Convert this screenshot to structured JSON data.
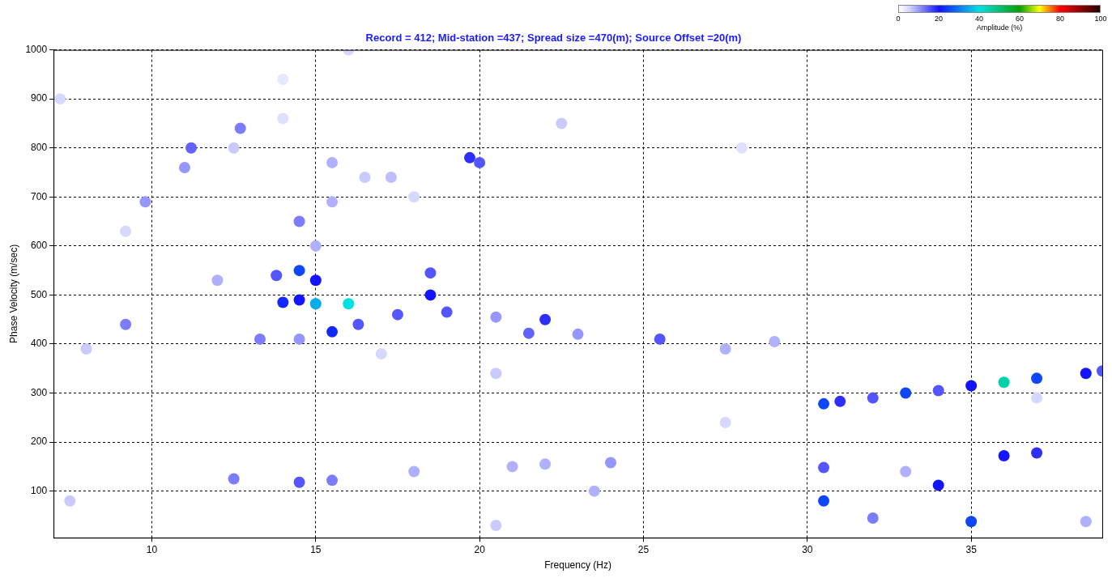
{
  "chart_data": {
    "type": "heatmap",
    "title": "Record = 412; Mid-station =437; Spread size =470(m); Source Offset =20(m)",
    "x_label": "Frequency (Hz)",
    "y_label": "Phase Velocity (m/sec)",
    "xlim": [
      7,
      39
    ],
    "xticks": [
      10,
      15,
      20,
      25,
      30,
      35
    ],
    "ylim": [
      5,
      1000
    ],
    "yticks": [
      100,
      200,
      300,
      400,
      500,
      600,
      700,
      800,
      900,
      1000
    ],
    "grid": true,
    "cells": [
      [
        7.2,
        900,
        5
      ],
      [
        9.8,
        690,
        10
      ],
      [
        9.2,
        630,
        5
      ],
      [
        11.2,
        800,
        14
      ],
      [
        11.0,
        760,
        10
      ],
      [
        12.7,
        840,
        12
      ],
      [
        12.5,
        800,
        6
      ],
      [
        14.0,
        860,
        4
      ],
      [
        14.5,
        650,
        12
      ],
      [
        15.5,
        770,
        8
      ],
      [
        15.5,
        690,
        8
      ],
      [
        16.5,
        740,
        6
      ],
      [
        17.3,
        740,
        7
      ],
      [
        18.0,
        700,
        5
      ],
      [
        19.7,
        780,
        18
      ],
      [
        20.0,
        770,
        15
      ],
      [
        15.0,
        600,
        8
      ],
      [
        14.0,
        940,
        3
      ],
      [
        28.0,
        800,
        4
      ],
      [
        22.5,
        850,
        6
      ],
      [
        16.0,
        1000,
        5
      ],
      [
        13.8,
        540,
        15
      ],
      [
        15.0,
        530,
        20
      ],
      [
        14.5,
        490,
        20
      ],
      [
        14.0,
        485,
        22
      ],
      [
        14.5,
        550,
        25
      ],
      [
        15.5,
        425,
        22
      ],
      [
        16.3,
        440,
        15
      ],
      [
        17.5,
        460,
        15
      ],
      [
        18.5,
        500,
        20
      ],
      [
        18.5,
        545,
        15
      ],
      [
        19.0,
        465,
        15
      ],
      [
        20.5,
        455,
        10
      ],
      [
        22.0,
        450,
        18
      ],
      [
        21.5,
        422,
        14
      ],
      [
        23.0,
        420,
        10
      ],
      [
        25.5,
        410,
        15
      ],
      [
        27.5,
        390,
        8
      ],
      [
        29.0,
        405,
        8
      ],
      [
        13.3,
        410,
        12
      ],
      [
        14.5,
        410,
        10
      ],
      [
        12.0,
        530,
        8
      ],
      [
        9.2,
        440,
        12
      ],
      [
        8.0,
        390,
        6
      ],
      [
        17.0,
        380,
        5
      ],
      [
        20.5,
        340,
        6
      ],
      [
        15.0,
        482,
        35
      ],
      [
        16.0,
        482,
        40
      ],
      [
        30.5,
        278,
        25
      ],
      [
        31.0,
        283,
        18
      ],
      [
        32.0,
        290,
        15
      ],
      [
        33.0,
        300,
        25
      ],
      [
        34.0,
        305,
        15
      ],
      [
        35.0,
        315,
        20
      ],
      [
        37.0,
        330,
        25
      ],
      [
        38.5,
        340,
        20
      ],
      [
        39.0,
        345,
        15
      ],
      [
        36.0,
        322,
        45
      ],
      [
        12.5,
        125,
        12
      ],
      [
        14.5,
        118,
        15
      ],
      [
        15.5,
        122,
        12
      ],
      [
        18.0,
        140,
        8
      ],
      [
        21.0,
        150,
        8
      ],
      [
        24.0,
        158,
        10
      ],
      [
        30.5,
        148,
        15
      ],
      [
        36.0,
        172,
        20
      ],
      [
        37.0,
        178,
        18
      ],
      [
        34.0,
        112,
        20
      ],
      [
        30.5,
        80,
        25
      ],
      [
        35.0,
        38,
        25
      ],
      [
        32.0,
        45,
        12
      ],
      [
        20.5,
        30,
        6
      ],
      [
        7.5,
        80,
        6
      ],
      [
        23.5,
        100,
        8
      ],
      [
        33.0,
        140,
        8
      ],
      [
        38.5,
        38,
        8
      ],
      [
        22.0,
        155,
        8
      ],
      [
        27.5,
        240,
        5
      ],
      [
        37.0,
        290,
        5
      ]
    ],
    "colorbar": {
      "label": "Amplitude (%)",
      "range": [
        0,
        100
      ],
      "ticks": [
        0,
        20,
        40,
        60,
        80,
        100
      ]
    }
  }
}
